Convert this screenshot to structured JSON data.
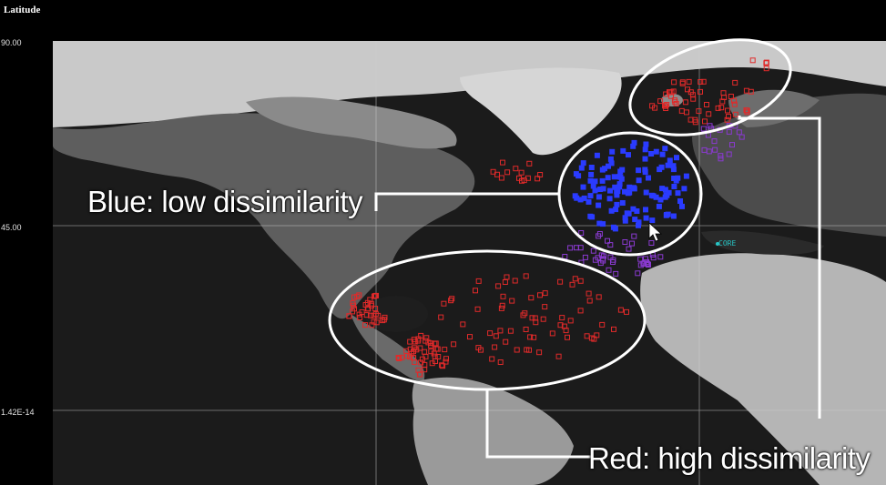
{
  "axis": {
    "title": "Latitude",
    "ticks": [
      "90.00",
      "45.00",
      "1.42E-14"
    ]
  },
  "annotations": {
    "blue_label": "Blue: low dissimilarity",
    "red_label": "Red: high dissimilarity"
  },
  "station": {
    "label": "CORE",
    "color": "#27c6c6"
  },
  "colors": {
    "low": "#2a3bff",
    "mid": "#8a3ad0",
    "high": "#e02a2a",
    "ellipse": "#ffffff"
  },
  "map": {
    "type": "satellite-grayscale",
    "region": "North Atlantic, North America, Europe, Africa"
  }
}
